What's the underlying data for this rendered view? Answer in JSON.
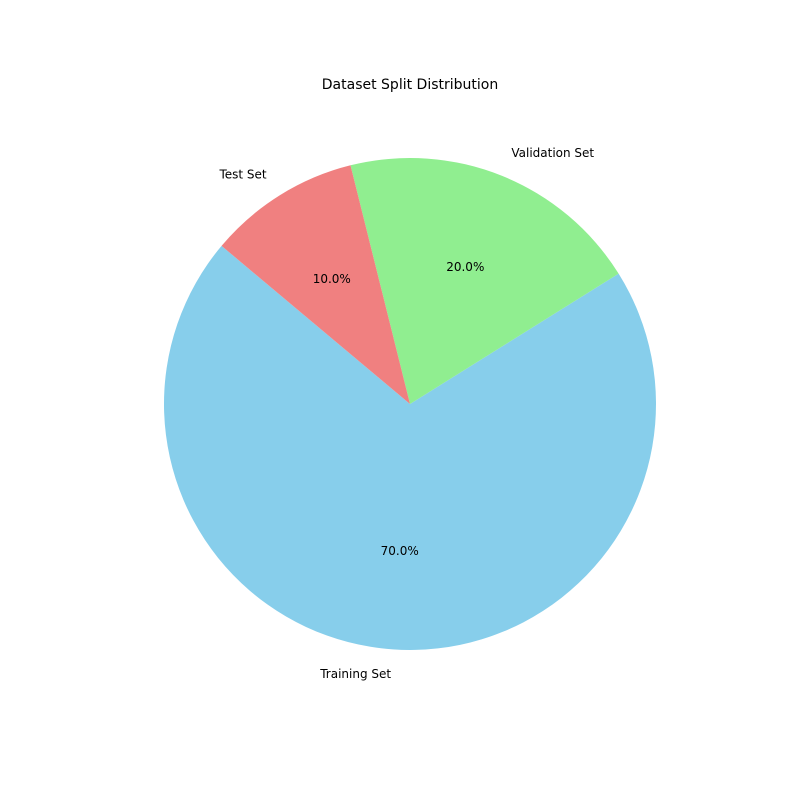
{
  "chart_data": {
    "type": "pie",
    "title": "Dataset Split Distribution",
    "start_angle_deg": 140,
    "direction": "counterclockwise",
    "slices": [
      {
        "label": "Training Set",
        "value": 70,
        "pct_label": "70.0%",
        "color": "#87CEEB"
      },
      {
        "label": "Validation Set",
        "value": 20,
        "pct_label": "20.0%",
        "color": "#90EE90"
      },
      {
        "label": "Test Set",
        "value": 10,
        "pct_label": "10.0%",
        "color": "#F08080"
      }
    ]
  }
}
